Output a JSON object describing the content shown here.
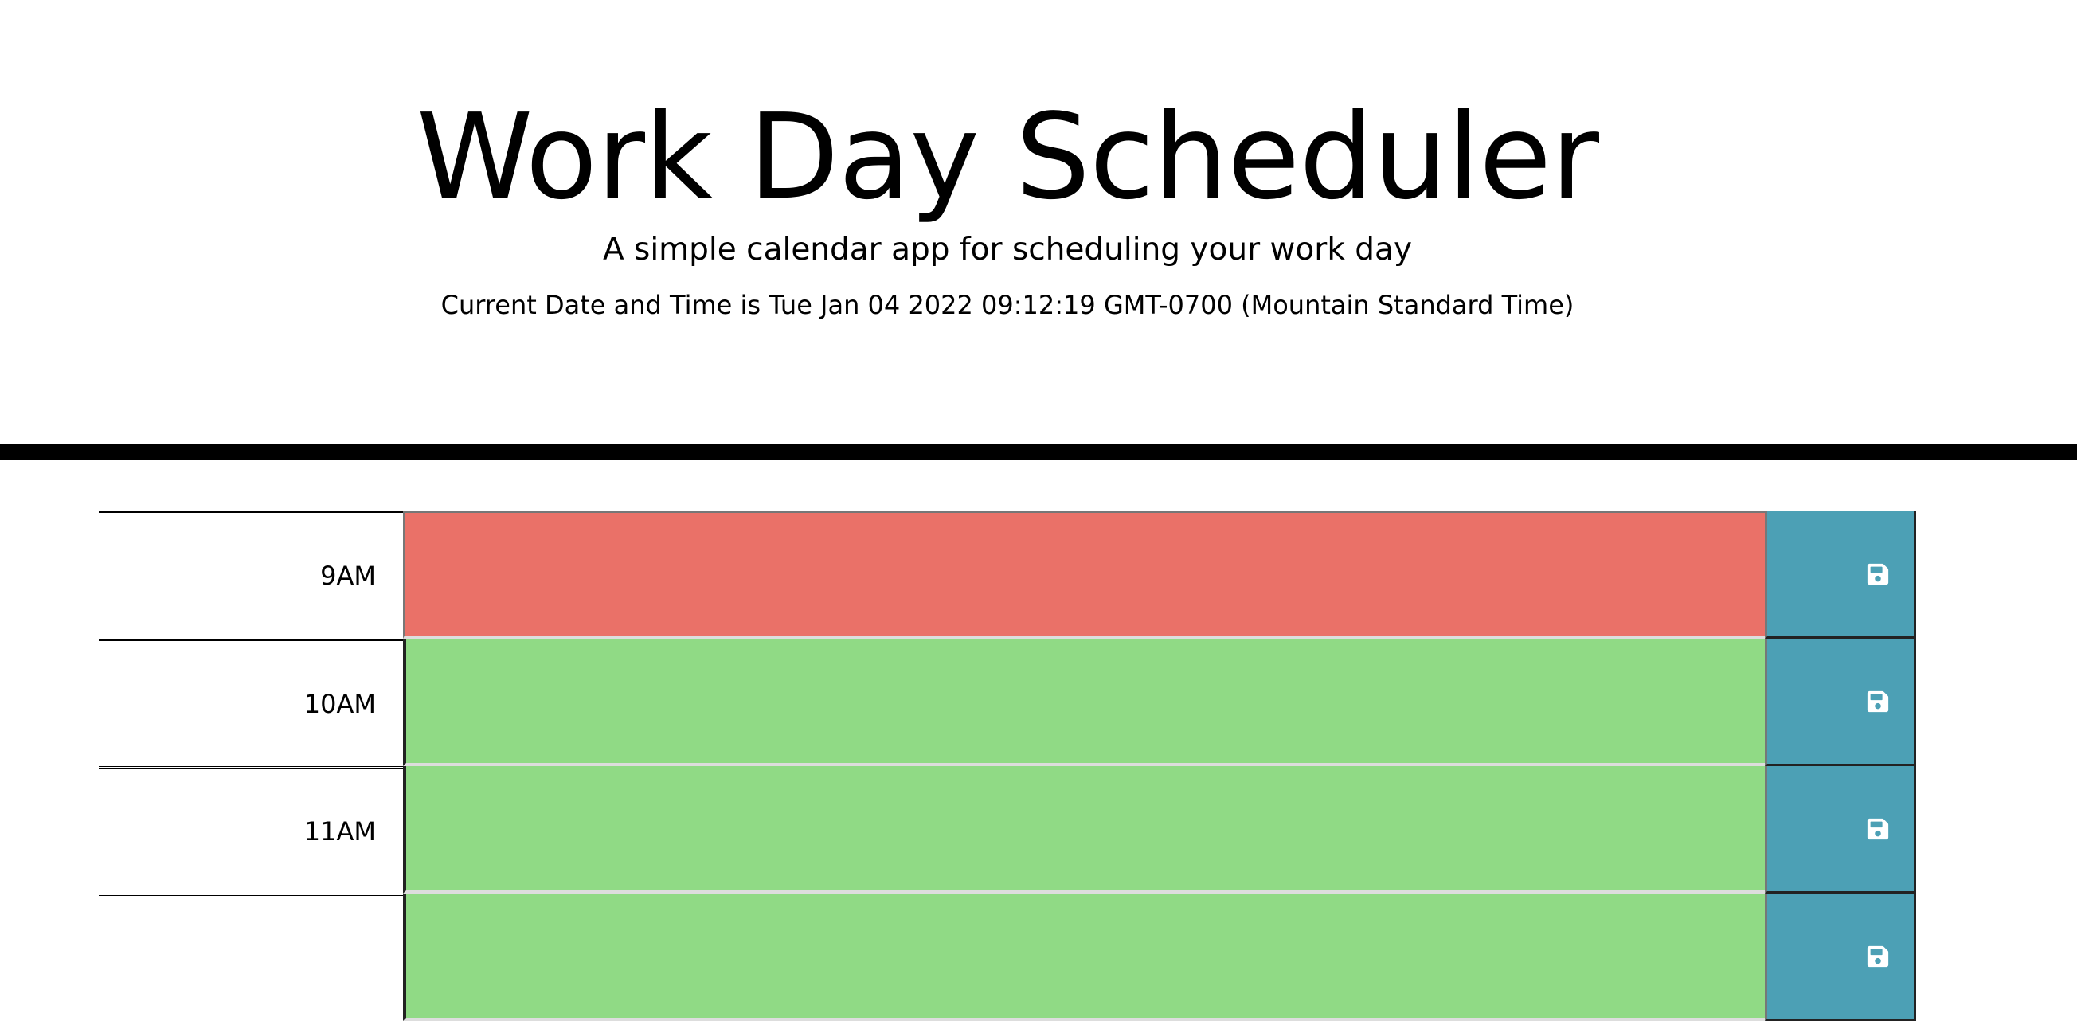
{
  "header": {
    "title": "Work Day Scheduler",
    "lead": "A simple calendar app for scheduling your work day",
    "current_day": "Current Date and Time is Tue Jan 04 2022 09:12:19 GMT-0700 (Mountain Standard Time)"
  },
  "schedule": {
    "blocks": [
      {
        "hour": "9AM",
        "state": "past",
        "color": "#ea7168",
        "text": ""
      },
      {
        "hour": "10AM",
        "state": "future",
        "color": "#90da85",
        "text": ""
      },
      {
        "hour": "11AM",
        "state": "future",
        "color": "#90da85",
        "text": ""
      },
      {
        "hour": "",
        "state": "future",
        "color": "#90da85",
        "text": ""
      }
    ],
    "save_icon": "floppy-disk-icon",
    "save_button_color": "#4ca0b5"
  }
}
